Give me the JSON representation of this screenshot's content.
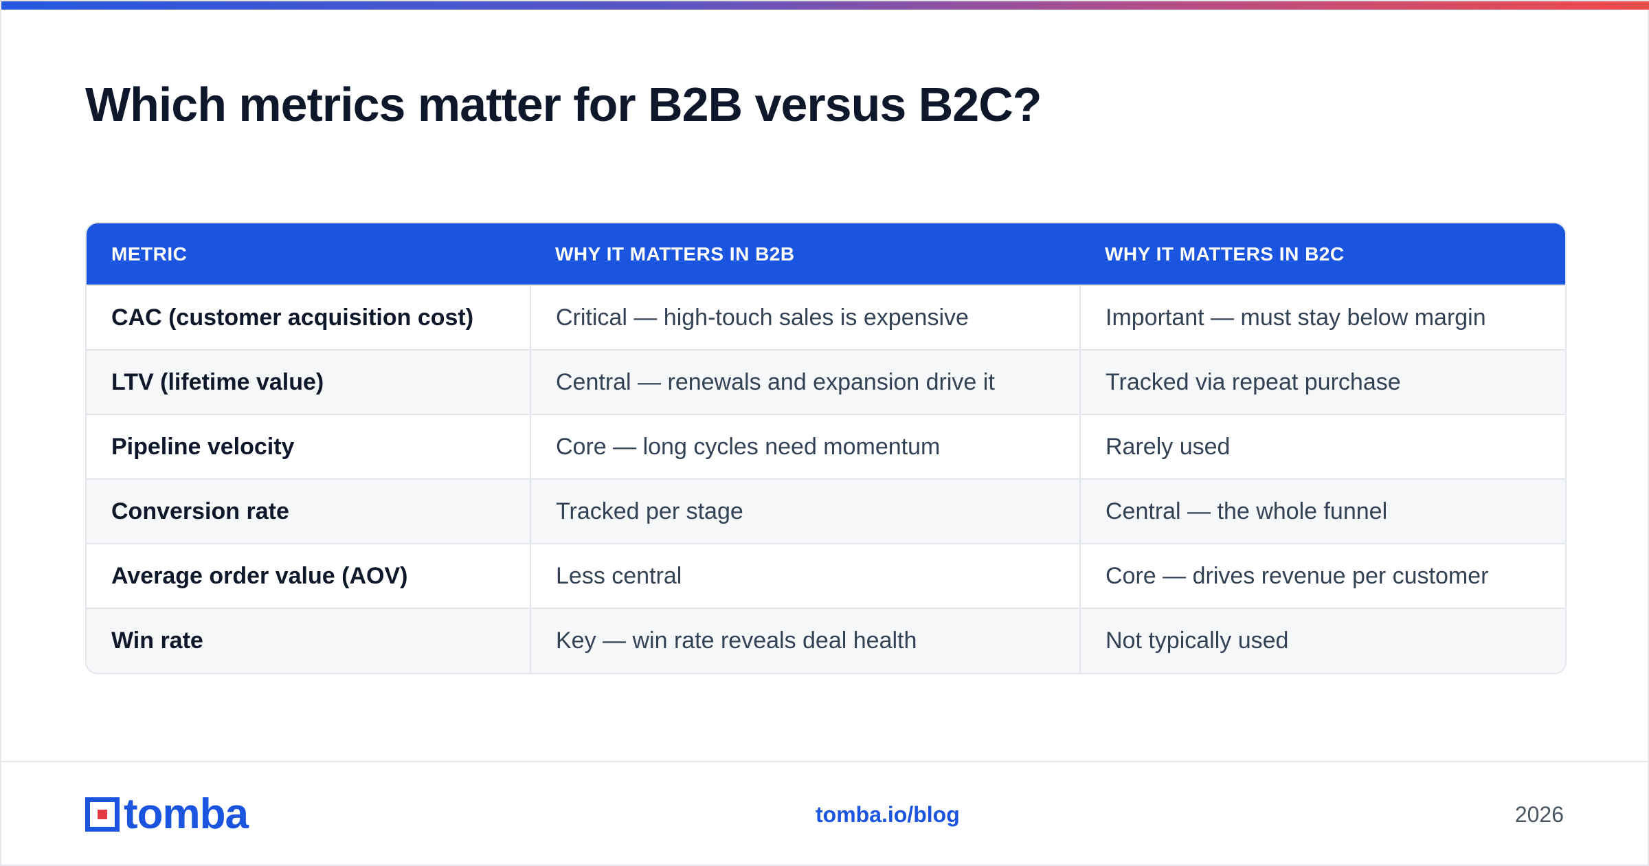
{
  "title": "Which metrics matter for B2B versus B2C?",
  "table": {
    "headers": [
      "METRIC",
      "WHY IT MATTERS IN B2B",
      "WHY IT MATTERS IN B2C"
    ],
    "rows": [
      [
        "CAC (customer acquisition cost)",
        "Critical — high-touch sales is expensive",
        "Important — must stay below margin"
      ],
      [
        "LTV (lifetime value)",
        "Central — renewals and expansion drive it",
        "Tracked via repeat purchase"
      ],
      [
        "Pipeline velocity",
        "Core — long cycles need momentum",
        "Rarely used"
      ],
      [
        "Conversion rate",
        "Tracked per stage",
        "Central — the whole funnel"
      ],
      [
        "Average order value (AOV)",
        "Less central",
        "Core — drives revenue per customer"
      ],
      [
        "Win rate",
        "Key — win rate reveals deal health",
        "Not typically used"
      ]
    ]
  },
  "footer": {
    "logo_text": "tomba",
    "link": "tomba.io/blog",
    "year": "2026"
  },
  "colors": {
    "header_bg": "#1b54de",
    "brand_blue": "#1b54de",
    "brand_red": "#e63946",
    "accent_gradient": [
      "#2557e0",
      "#ef4a4a"
    ]
  },
  "icons": {
    "logo": "tomba-logo-icon"
  }
}
